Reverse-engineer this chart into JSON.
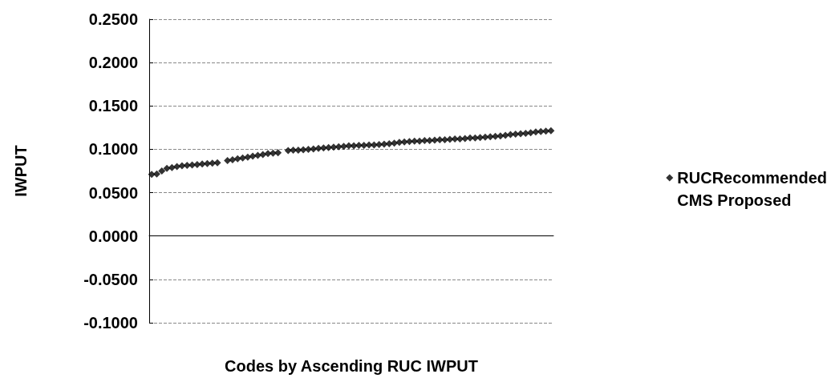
{
  "chart_data": {
    "type": "scatter",
    "xlabel": "Codes by Ascending RUC IWPUT",
    "ylabel": "IWPUT",
    "categories": [
      null,
      null,
      null,
      null,
      null,
      null,
      null,
      null,
      null,
      null,
      null,
      null,
      null,
      null,
      null,
      null,
      null,
      null,
      null,
      null,
      null,
      null,
      null,
      null,
      null,
      null,
      null,
      null,
      null,
      null,
      null,
      null,
      null,
      null,
      null,
      null,
      null,
      null,
      null,
      null,
      null,
      null,
      null,
      null,
      null,
      null,
      null,
      null,
      null,
      null,
      null,
      null,
      null,
      null,
      null,
      null,
      null,
      null,
      null,
      null,
      null,
      null,
      null,
      null,
      null,
      null,
      null,
      null,
      null,
      null,
      null,
      null,
      null,
      null,
      null,
      null,
      null,
      null,
      null,
      null
    ],
    "series": [
      {
        "name": "RUCRecommended",
        "color": "#000000",
        "marker": "diamond",
        "values": [
          0.071,
          0.0715,
          0.075,
          0.078,
          0.079,
          0.08,
          0.081,
          0.0815,
          0.082,
          0.0825,
          0.083,
          0.0835,
          0.084,
          0.0845,
          null,
          0.087,
          0.088,
          0.089,
          0.09,
          0.091,
          0.092,
          0.093,
          0.094,
          0.095,
          0.0955,
          0.096,
          null,
          0.0985,
          0.099,
          0.099,
          0.0995,
          0.1,
          0.1005,
          0.101,
          0.1015,
          0.102,
          0.1025,
          0.103,
          0.1035,
          0.104,
          0.104,
          0.1045,
          0.1045,
          0.105,
          0.105,
          0.1055,
          0.106,
          0.1065,
          0.107,
          0.108,
          0.1085,
          0.109,
          0.1095,
          0.1095,
          0.11,
          0.11,
          0.1105,
          0.111,
          0.111,
          0.1115,
          0.112,
          0.112,
          0.1125,
          0.113,
          0.113,
          0.1135,
          0.114,
          0.1145,
          0.115,
          0.1155,
          0.116,
          0.117,
          0.1175,
          0.118,
          0.1185,
          0.119,
          0.12,
          0.1205,
          0.121,
          0.1215
        ]
      },
      {
        "name": "CMS Proposed",
        "color": "#000000",
        "marker": "none",
        "values": [
          null,
          null,
          null,
          null,
          null,
          null,
          null,
          null,
          null,
          null,
          null,
          null,
          null,
          null,
          null,
          null,
          null,
          null,
          null,
          null,
          null,
          null,
          null,
          null,
          null,
          null,
          null,
          null,
          null,
          null,
          null,
          null,
          null,
          null,
          null,
          null,
          null,
          null,
          null,
          null,
          null,
          null,
          null,
          null,
          null,
          null,
          null,
          null,
          null,
          null,
          null,
          null,
          null,
          null,
          null,
          null,
          null,
          null,
          null,
          null,
          null,
          null,
          null,
          null,
          null,
          null,
          null,
          null,
          null,
          null,
          null,
          null,
          null,
          null,
          null,
          null,
          null,
          null,
          null,
          null
        ]
      }
    ],
    "ylim": [
      -0.1,
      0.25
    ],
    "yticks": [
      {
        "value": -0.1,
        "label": "-0.1000"
      },
      {
        "value": -0.05,
        "label": "-0.0500"
      },
      {
        "value": 0,
        "label": "0.0000"
      },
      {
        "value": 0.05,
        "label": "0.0500"
      },
      {
        "value": 0.1,
        "label": "0.1000"
      },
      {
        "value": 0.15,
        "label": "0.1500"
      },
      {
        "value": 0.2,
        "label": "0.2000"
      },
      {
        "value": 0.25,
        "label": "0.2500"
      }
    ],
    "grid": "y",
    "legend": "right",
    "tick_labels": "y"
  }
}
